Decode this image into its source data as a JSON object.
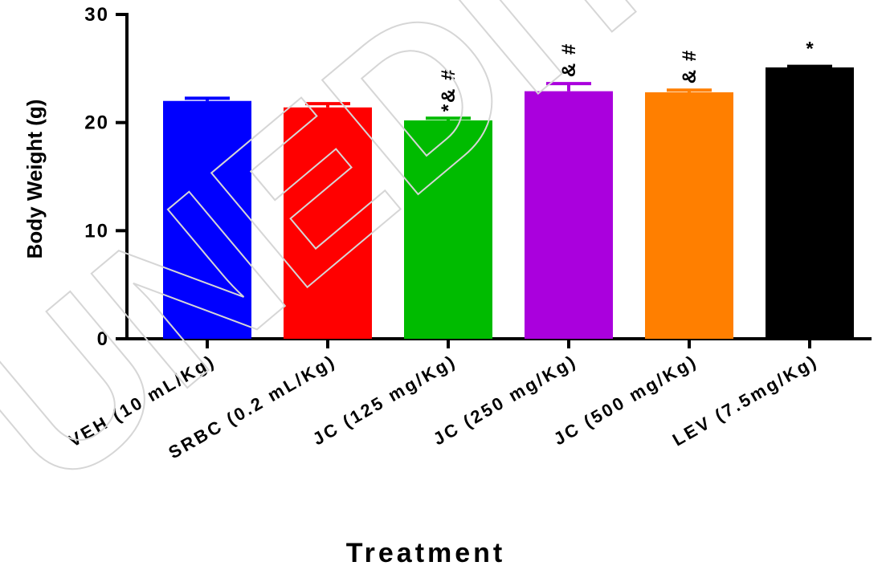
{
  "chart_data": {
    "type": "bar",
    "title": "",
    "xlabel": "Treatment",
    "ylabel": "Body Weight (g)",
    "ylim": [
      0,
      30
    ],
    "yticks": [
      "0",
      "10",
      "20",
      "30"
    ],
    "grid": false,
    "categories": [
      "VEH (10 mL/Kg)",
      "SRBC (0.2 mL/Kg)",
      "JC (125 mg/Kg)",
      "JC (250 mg/Kg)",
      "JC (500 mg/Kg)",
      "LEV (7.5mg/Kg)"
    ],
    "values": [
      22.0,
      21.4,
      20.2,
      22.9,
      22.8,
      25.1
    ],
    "errors": [
      0.25,
      0.35,
      0.2,
      0.7,
      0.2,
      0.1
    ],
    "colors": [
      "#0000ff",
      "#ff0000",
      "#00bb00",
      "#aa00dd",
      "#ff7f00",
      "#000000"
    ],
    "annotations": [
      "",
      "",
      "*& #",
      "& #",
      "& #",
      "*"
    ]
  },
  "watermark": {
    "text": "UNEDITED PE",
    "color": "#d6d6d6"
  }
}
